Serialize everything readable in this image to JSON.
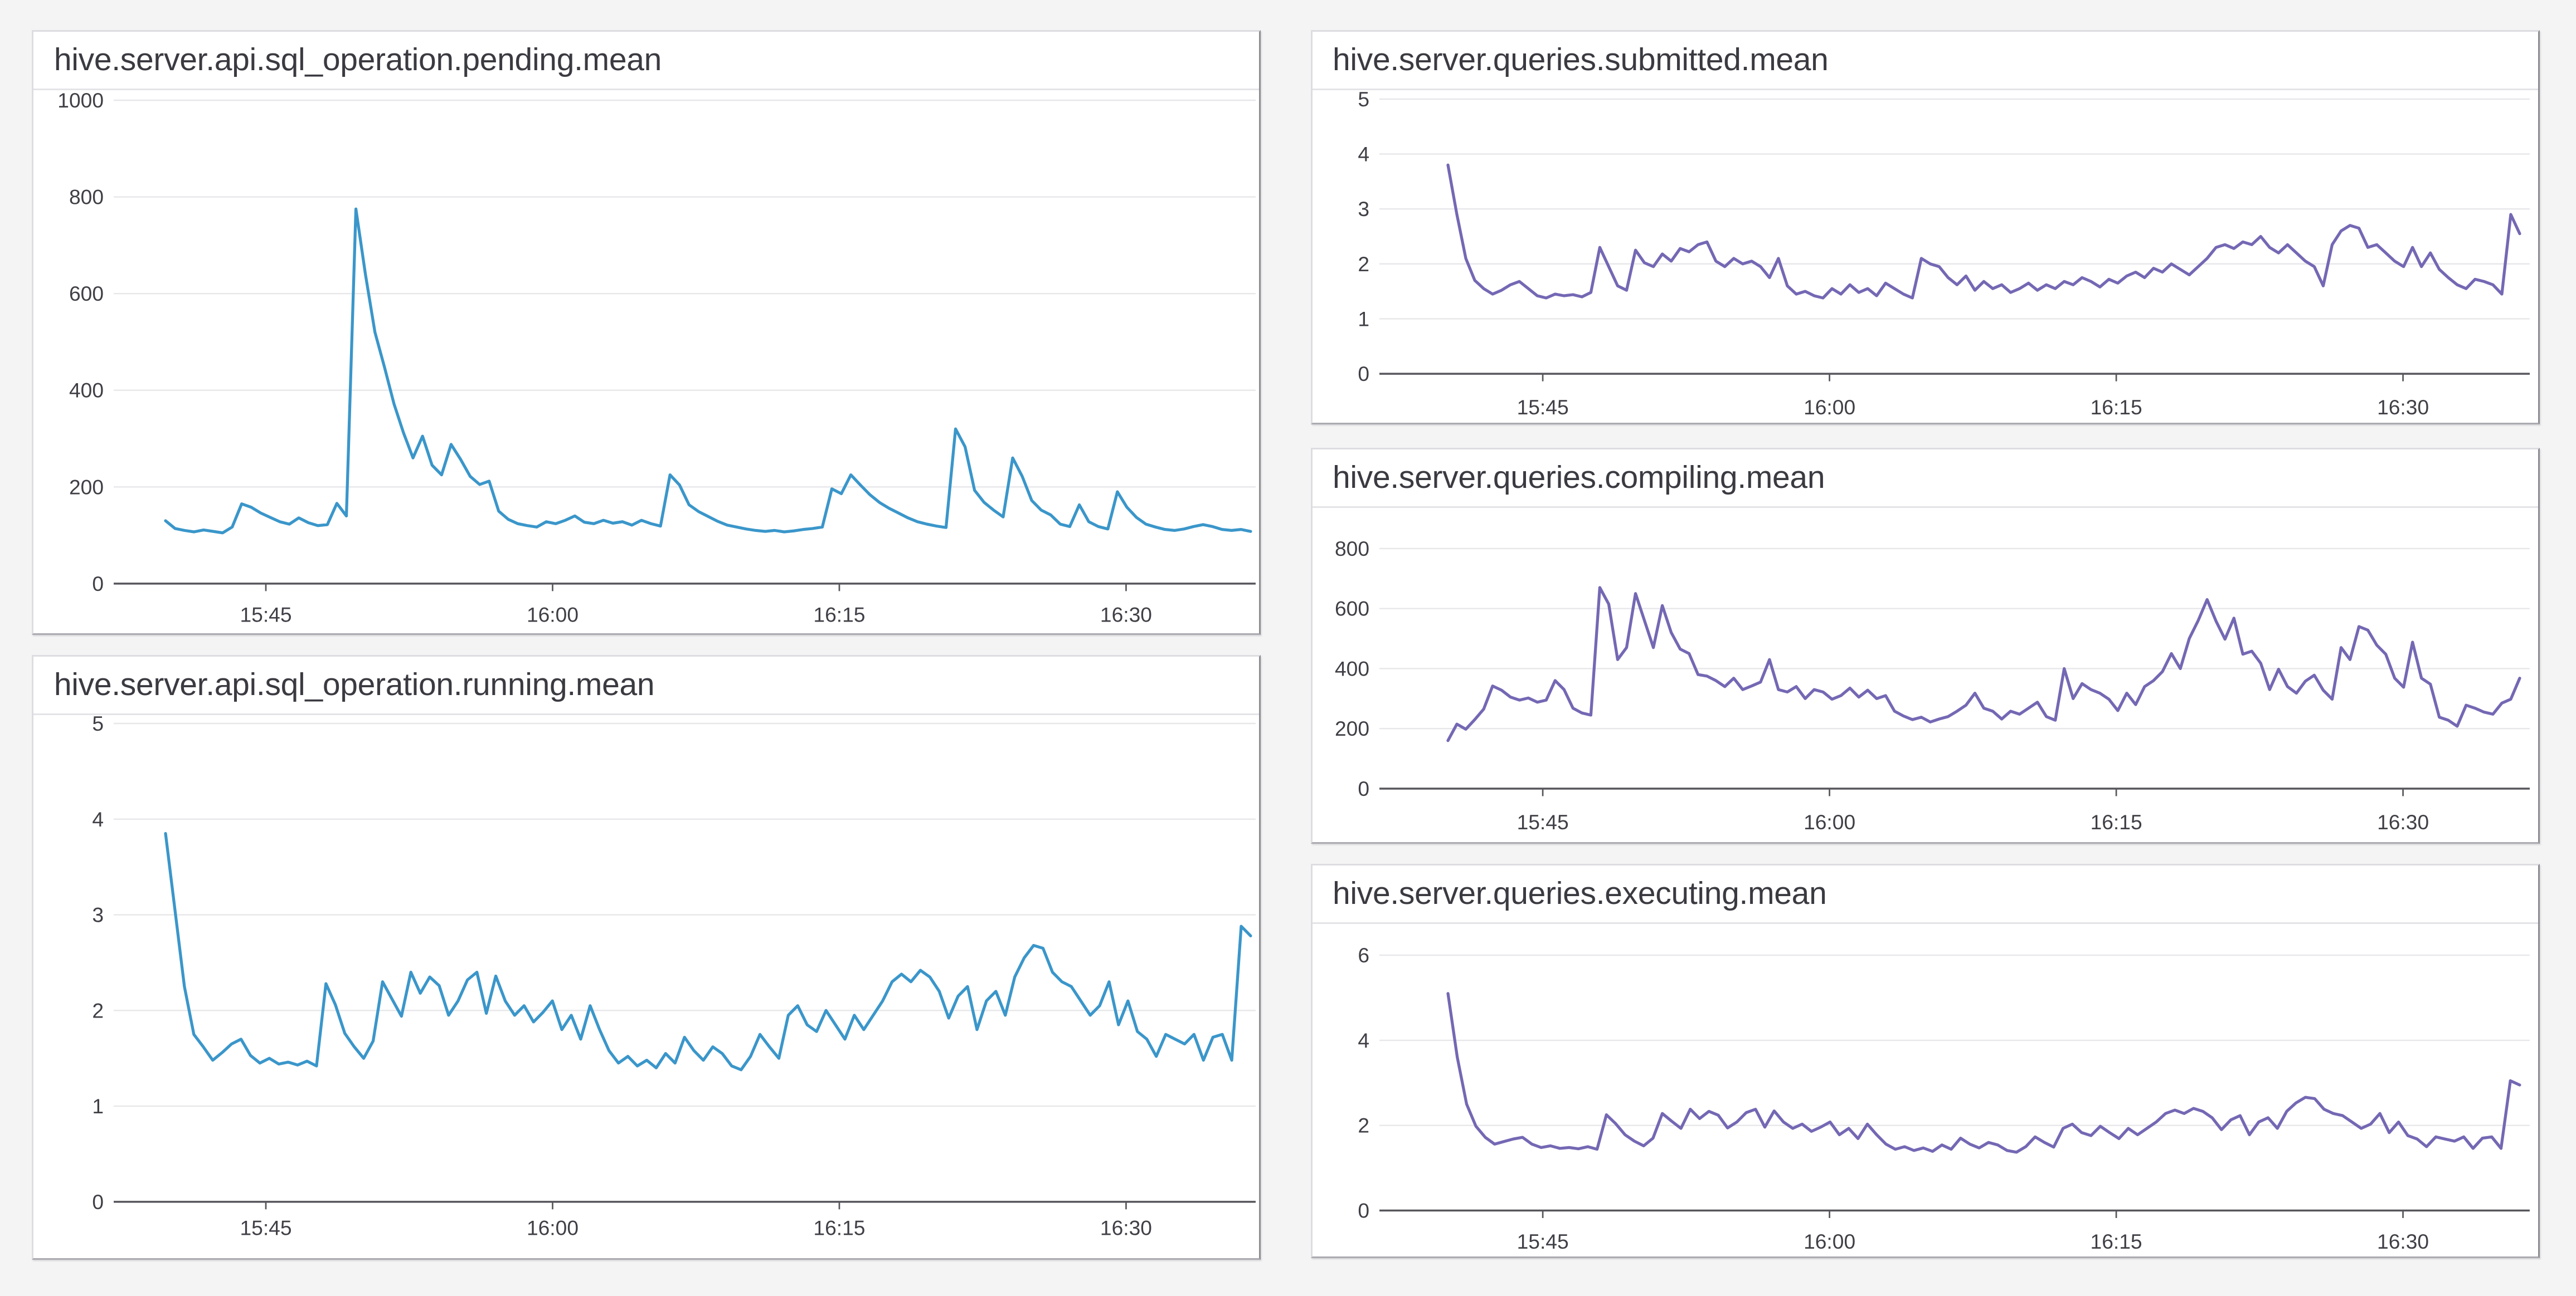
{
  "page": {
    "background_color": "#f4f4f5",
    "panel_background": "#ffffff",
    "grid_color": "#e7e7ea",
    "axis_color": "#56565c",
    "label_color": "#3f3f46",
    "title_color": "#3a3a41",
    "blue_series_color": "#3a96ca",
    "purple_series_color": "#7468b4"
  },
  "chart_data": [
    {
      "id": "pending",
      "type": "line",
      "title": "hive.server.api.sql_operation.pending.mean",
      "color": "#3a96ca",
      "legend": "none",
      "grid": true,
      "x_ticks": [
        "15:45",
        "16:00",
        "16:15",
        "16:30"
      ],
      "y_ticks": [
        0,
        200,
        400,
        600,
        800,
        1000
      ],
      "ylim": [
        0,
        1000
      ],
      "values": [
        130,
        114,
        110,
        107,
        111,
        108,
        105,
        117,
        165,
        158,
        146,
        137,
        128,
        123,
        136,
        126,
        120,
        122,
        166,
        140,
        775,
        640,
        520,
        448,
        372,
        312,
        260,
        305,
        245,
        225,
        288,
        257,
        222,
        205,
        212,
        150,
        133,
        124,
        120,
        117,
        128,
        124,
        131,
        140,
        127,
        124,
        131,
        125,
        128,
        121,
        131,
        124,
        119,
        225,
        204,
        163,
        149,
        139,
        129,
        121,
        117,
        113,
        110,
        108,
        110,
        107,
        109,
        112,
        114,
        117,
        196,
        186,
        225,
        204,
        184,
        168,
        156,
        146,
        136,
        128,
        123,
        119,
        116,
        320,
        283,
        193,
        168,
        152,
        138,
        260,
        222,
        172,
        152,
        142,
        123,
        118,
        163,
        128,
        118,
        113,
        190,
        158,
        137,
        123,
        117,
        112,
        110,
        113,
        118,
        122,
        118,
        112,
        110,
        112,
        108
      ]
    },
    {
      "id": "running",
      "type": "line",
      "title": "hive.server.api.sql_operation.running.mean",
      "color": "#3a96ca",
      "legend": "none",
      "grid": true,
      "x_ticks": [
        "15:45",
        "16:00",
        "16:15",
        "16:30"
      ],
      "y_ticks": [
        0,
        1,
        2,
        3,
        4,
        5
      ],
      "ylim": [
        0,
        5
      ],
      "values": [
        3.85,
        3.05,
        2.25,
        1.75,
        1.62,
        1.48,
        1.56,
        1.65,
        1.7,
        1.53,
        1.45,
        1.5,
        1.44,
        1.46,
        1.43,
        1.47,
        1.42,
        2.28,
        2.06,
        1.76,
        1.62,
        1.5,
        1.68,
        2.3,
        2.12,
        1.94,
        2.4,
        2.18,
        2.35,
        2.26,
        1.95,
        2.1,
        2.32,
        2.4,
        1.97,
        2.36,
        2.1,
        1.95,
        2.05,
        1.88,
        1.98,
        2.1,
        1.8,
        1.95,
        1.7,
        2.05,
        1.8,
        1.58,
        1.45,
        1.52,
        1.42,
        1.48,
        1.4,
        1.55,
        1.45,
        1.72,
        1.58,
        1.48,
        1.62,
        1.55,
        1.42,
        1.38,
        1.52,
        1.75,
        1.62,
        1.5,
        1.95,
        2.05,
        1.85,
        1.78,
        2.0,
        1.85,
        1.7,
        1.95,
        1.8,
        1.95,
        2.1,
        2.3,
        2.38,
        2.3,
        2.42,
        2.35,
        2.2,
        1.92,
        2.15,
        2.25,
        1.8,
        2.1,
        2.2,
        1.95,
        2.35,
        2.55,
        2.68,
        2.65,
        2.4,
        2.3,
        2.25,
        2.1,
        1.95,
        2.05,
        2.3,
        1.85,
        2.1,
        1.78,
        1.7,
        1.52,
        1.75,
        1.7,
        1.65,
        1.75,
        1.48,
        1.72,
        1.75,
        1.48,
        2.88,
        2.78
      ]
    },
    {
      "id": "submitted",
      "type": "line",
      "title": "hive.server.queries.submitted.mean",
      "color": "#7468b4",
      "legend": "none",
      "grid": true,
      "x_ticks": [
        "15:45",
        "16:00",
        "16:15",
        "16:30"
      ],
      "y_ticks": [
        0,
        1,
        2,
        3,
        4,
        5
      ],
      "ylim": [
        0,
        5
      ],
      "values": [
        3.8,
        2.9,
        2.1,
        1.7,
        1.55,
        1.45,
        1.52,
        1.62,
        1.68,
        1.55,
        1.42,
        1.38,
        1.45,
        1.42,
        1.44,
        1.4,
        1.48,
        2.3,
        1.95,
        1.6,
        1.52,
        2.25,
        2.02,
        1.95,
        2.18,
        2.05,
        2.28,
        2.22,
        2.35,
        2.4,
        2.05,
        1.95,
        2.1,
        2.0,
        2.05,
        1.95,
        1.75,
        2.1,
        1.6,
        1.45,
        1.5,
        1.42,
        1.38,
        1.55,
        1.45,
        1.62,
        1.48,
        1.55,
        1.42,
        1.65,
        1.55,
        1.45,
        1.38,
        2.1,
        2.0,
        1.95,
        1.75,
        1.62,
        1.78,
        1.52,
        1.68,
        1.55,
        1.62,
        1.48,
        1.55,
        1.65,
        1.52,
        1.62,
        1.55,
        1.68,
        1.62,
        1.75,
        1.68,
        1.58,
        1.72,
        1.65,
        1.78,
        1.85,
        1.75,
        1.92,
        1.85,
        2.0,
        1.9,
        1.8,
        1.95,
        2.1,
        2.3,
        2.35,
        2.28,
        2.4,
        2.35,
        2.5,
        2.3,
        2.2,
        2.35,
        2.2,
        2.05,
        1.95,
        1.6,
        2.35,
        2.6,
        2.7,
        2.65,
        2.3,
        2.35,
        2.2,
        2.05,
        1.95,
        2.3,
        1.95,
        2.2,
        1.9,
        1.75,
        1.62,
        1.55,
        1.72,
        1.68,
        1.62,
        1.45,
        2.9,
        2.55
      ]
    },
    {
      "id": "compiling",
      "type": "line",
      "title": "hive.server.queries.compiling.mean",
      "color": "#7468b4",
      "legend": "none",
      "grid": true,
      "x_ticks": [
        "15:45",
        "16:00",
        "16:15",
        "16:30"
      ],
      "y_ticks": [
        0,
        200,
        400,
        600,
        800
      ],
      "ylim": [
        0,
        800
      ],
      "values": [
        160,
        215,
        198,
        230,
        265,
        342,
        328,
        305,
        295,
        302,
        288,
        295,
        360,
        330,
        268,
        252,
        245,
        670,
        615,
        430,
        470,
        650,
        560,
        470,
        610,
        520,
        465,
        450,
        380,
        375,
        360,
        340,
        368,
        330,
        342,
        355,
        430,
        330,
        322,
        340,
        300,
        330,
        322,
        298,
        310,
        335,
        305,
        328,
        300,
        310,
        258,
        242,
        230,
        238,
        222,
        232,
        240,
        258,
        278,
        318,
        268,
        258,
        232,
        258,
        248,
        268,
        288,
        240,
        228,
        400,
        300,
        350,
        330,
        318,
        298,
        260,
        318,
        280,
        340,
        360,
        390,
        450,
        400,
        500,
        560,
        630,
        558,
        498,
        568,
        448,
        458,
        418,
        330,
        398,
        340,
        318,
        358,
        378,
        328,
        298,
        470,
        430,
        540,
        528,
        478,
        448,
        368,
        338,
        488,
        368,
        348,
        238,
        228,
        208,
        278,
        268,
        255,
        248,
        285,
        298,
        368
      ]
    },
    {
      "id": "executing",
      "type": "line",
      "title": "hive.server.queries.executing.mean",
      "color": "#7468b4",
      "legend": "none",
      "grid": true,
      "x_ticks": [
        "15:45",
        "16:00",
        "16:15",
        "16:30"
      ],
      "y_ticks": [
        0,
        2,
        4,
        6
      ],
      "ylim": [
        0,
        6
      ],
      "values": [
        5.1,
        3.6,
        2.5,
        1.98,
        1.72,
        1.56,
        1.62,
        1.68,
        1.72,
        1.56,
        1.48,
        1.52,
        1.46,
        1.48,
        1.45,
        1.5,
        1.44,
        2.25,
        2.04,
        1.78,
        1.63,
        1.52,
        1.7,
        2.28,
        2.1,
        1.93,
        2.38,
        2.16,
        2.33,
        2.24,
        1.94,
        2.08,
        2.3,
        2.38,
        1.96,
        2.34,
        2.08,
        1.93,
        2.03,
        1.86,
        1.96,
        2.08,
        1.78,
        1.93,
        1.69,
        2.03,
        1.78,
        1.56,
        1.44,
        1.5,
        1.41,
        1.47,
        1.39,
        1.54,
        1.44,
        1.7,
        1.56,
        1.47,
        1.6,
        1.54,
        1.41,
        1.37,
        1.5,
        1.73,
        1.6,
        1.49,
        1.93,
        2.03,
        1.83,
        1.76,
        1.98,
        1.83,
        1.69,
        1.93,
        1.78,
        1.93,
        2.08,
        2.28,
        2.36,
        2.28,
        2.4,
        2.33,
        2.18,
        1.9,
        2.13,
        2.23,
        1.78,
        2.08,
        2.18,
        1.93,
        2.33,
        2.53,
        2.66,
        2.63,
        2.38,
        2.28,
        2.23,
        2.08,
        1.93,
        2.03,
        2.28,
        1.83,
        2.08,
        1.76,
        1.68,
        1.5,
        1.73,
        1.68,
        1.63,
        1.73,
        1.46,
        1.7,
        1.73,
        1.46,
        3.05,
        2.95
      ]
    }
  ]
}
